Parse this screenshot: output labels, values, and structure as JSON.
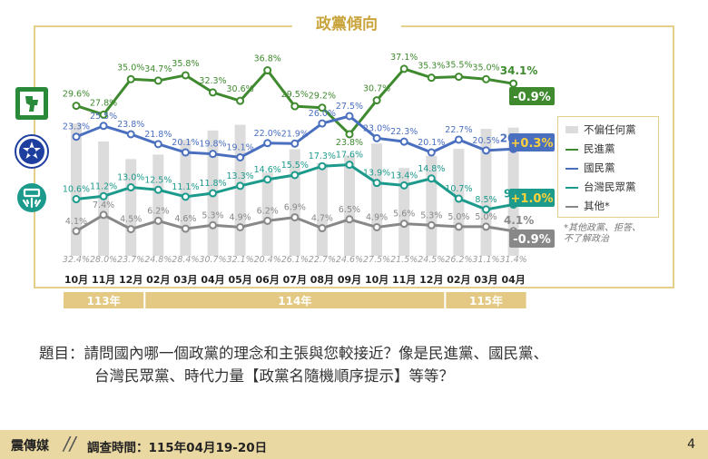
{
  "title": "政黨傾向",
  "colors": {
    "dpp": "#3f8a2e",
    "kmt": "#4a6fbf",
    "tpp": "#1c9a8c",
    "other": "#888888",
    "none": "#dcdcdc",
    "gold": "#c9a33c"
  },
  "legend": {
    "none": "不偏任何黨",
    "dpp": "民進黨",
    "kmt": "國民黨",
    "tpp": "台灣民眾黨",
    "other": "其他*"
  },
  "note": {
    "line1": "*其他政黨、拒答、",
    "line2": "不了解政治"
  },
  "changes": {
    "dpp": "-0.9%",
    "kmt": "+0.3%",
    "tpp": "+1.0%",
    "other": "-0.9%"
  },
  "years": [
    {
      "label": "113年"
    },
    {
      "label": "114年"
    },
    {
      "label": "115年"
    }
  ],
  "question": {
    "line1": "題目：請問國內哪一個政黨的理念和主張與您較接近？像是民進黨、國民黨、",
    "line2": "台灣民眾黨、時代力量【政黨名隨機順序提示】等等？"
  },
  "footer": {
    "brand": "震傳媒",
    "slash": "//",
    "survey": "調查時間：115年04月19-20日",
    "page": "4"
  },
  "chart_data": {
    "type": "line",
    "title": "政黨傾向",
    "categories": [
      "10月",
      "11月",
      "12月",
      "02月",
      "03月",
      "04月",
      "05月",
      "06月",
      "07月",
      "08月",
      "09月",
      "10月",
      "11月",
      "12月",
      "02月",
      "03月",
      "04月"
    ],
    "series": [
      {
        "name": "不偏任何黨",
        "type": "bar",
        "values": [
          32.4,
          28.0,
          23.7,
          24.8,
          28.4,
          30.7,
          32.1,
          20.4,
          26.1,
          22.7,
          24.6,
          27.5,
          21.5,
          24.5,
          26.2,
          31.1,
          31.4
        ],
        "labels": [
          "32.4%",
          "28.0%",
          "23.7%",
          "24.8%",
          "28.4%",
          "30.7%",
          "32.1%",
          "20.4%",
          "26.1%",
          "22.7%",
          "24.6%",
          "27.5%",
          "21.5%",
          "24.5%",
          "26.2%",
          "31.1%",
          "31.4%"
        ]
      },
      {
        "name": "民進黨",
        "values": [
          29.6,
          27.8,
          35.0,
          34.7,
          35.8,
          32.3,
          30.6,
          36.8,
          29.5,
          29.2,
          23.8,
          30.7,
          37.1,
          35.3,
          35.5,
          35.0,
          34.1
        ],
        "labels": [
          "29.6%",
          "27.8%",
          "35.0%",
          "34.7%",
          "35.8%",
          "32.3%",
          "30.6%",
          "36.8%",
          "29.5%",
          "29.2%",
          "23.8%",
          "30.7%",
          "37.1%",
          "35.3%",
          "35.5%",
          "35.0%",
          "34.1%"
        ]
      },
      {
        "name": "國民黨",
        "values": [
          23.3,
          25.5,
          23.8,
          21.8,
          20.1,
          19.8,
          19.1,
          22.0,
          21.9,
          26.0,
          27.5,
          23.0,
          22.3,
          20.1,
          22.7,
          20.5,
          20.8
        ],
        "labels": [
          "23.3%",
          "25.5%",
          "23.8%",
          "21.8%",
          "20.1%",
          "19.8%",
          "19.1%",
          "22.0%",
          "21.9%",
          "26.0%",
          "27.5%",
          "23.0%",
          "22.3%",
          "20.1%",
          "22.7%",
          "20.5%",
          "20.8%"
        ]
      },
      {
        "name": "台灣民眾黨",
        "values": [
          10.6,
          11.2,
          13.0,
          12.5,
          11.1,
          11.8,
          13.3,
          14.6,
          15.5,
          17.3,
          17.6,
          13.9,
          13.4,
          14.8,
          10.7,
          8.5,
          9.5
        ],
        "labels": [
          "10.6%",
          "11.2%",
          "13.0%",
          "12.5%",
          "11.1%",
          "11.8%",
          "13.3%",
          "14.6%",
          "15.5%",
          "17.3%",
          "17.6%",
          "13.9%",
          "13.4%",
          "14.8%",
          "10.7%",
          "8.5%",
          "9.5%"
        ]
      },
      {
        "name": "其他*",
        "values": [
          4.1,
          7.4,
          4.5,
          6.2,
          4.6,
          5.3,
          4.9,
          6.2,
          6.9,
          4.7,
          6.5,
          4.9,
          5.6,
          5.3,
          5.0,
          5.0,
          4.1
        ],
        "labels": [
          "4.1%",
          "7.4%",
          "4.5%",
          "6.2%",
          "4.6%",
          "5.3%",
          "4.9%",
          "6.2%",
          "6.9%",
          "4.7%",
          "6.5%",
          "4.9%",
          "5.6%",
          "5.3%",
          "5.0%",
          "5.0%",
          "4.1%"
        ]
      }
    ]
  }
}
